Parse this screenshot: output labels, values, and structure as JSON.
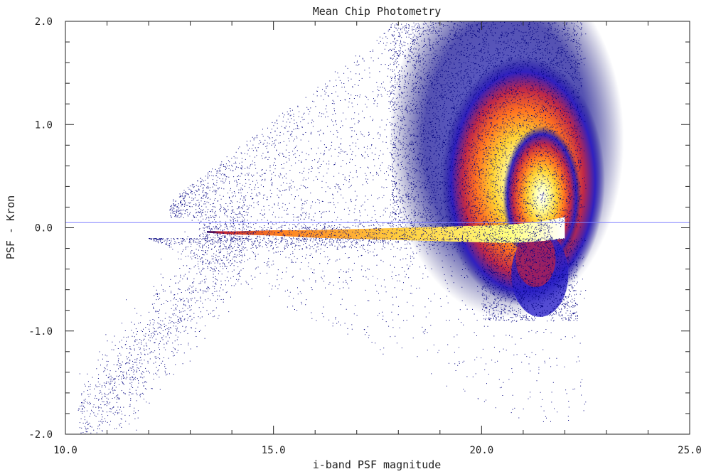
{
  "chart_data": {
    "type": "scatter",
    "title": "Mean Chip Photometry",
    "xlabel": "i-band PSF magnitude",
    "ylabel": "PSF - Kron",
    "xlim": [
      10.0,
      25.0
    ],
    "ylim": [
      -2.0,
      2.0
    ],
    "x_ticks": [
      "10.0",
      "15.0",
      "20.0",
      "25.0"
    ],
    "y_ticks": [
      "-2.0",
      "-1.0",
      "0.0",
      "1.0",
      "2.0"
    ],
    "reference_line": {
      "y": 0.05,
      "color": "#8080ff"
    },
    "grid": false,
    "density_colormap": [
      "#000080",
      "#2a20c8",
      "#6030d0",
      "#c02040",
      "#ff6010",
      "#ffc020",
      "#ffff60",
      "#ffffff"
    ],
    "series": [
      {
        "x": [
          13.4,
          14.0,
          15.0,
          16.0,
          17.0,
          18.0,
          19.0,
          20.0,
          20.5,
          21.0,
          21.5,
          22.0
        ],
        "y": [
          -0.04,
          -0.05,
          -0.05,
          -0.06,
          -0.06,
          -0.06,
          -0.06,
          -0.06,
          -0.06,
          -0.05,
          -0.03,
          0.0
        ]
      },
      {
        "x": [
          18.5,
          19.0,
          19.5,
          20.0,
          20.5,
          21.0,
          21.5,
          22.0
        ],
        "y": [
          1.1,
          0.9,
          0.8,
          0.7,
          0.55,
          0.45,
          0.35,
          0.25
        ]
      },
      {
        "x": [
          20.5,
          21.0,
          21.5,
          22.0
        ],
        "y": [
          -0.25,
          -0.4,
          -0.6,
          -0.7
        ]
      }
    ]
  }
}
